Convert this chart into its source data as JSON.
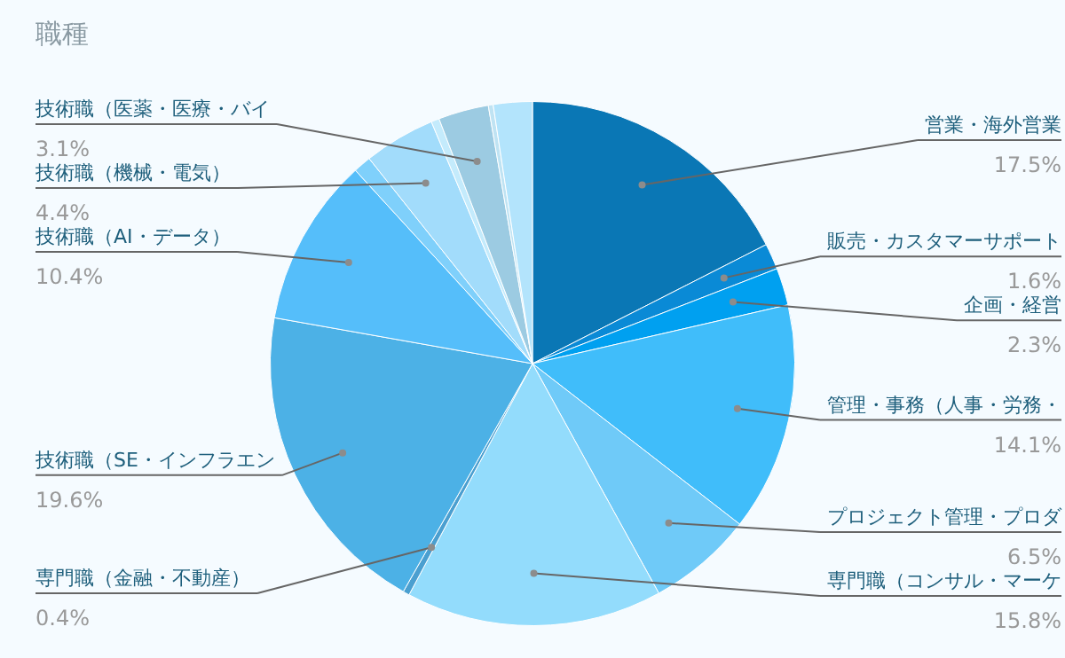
{
  "chart_data": {
    "type": "pie",
    "title": "職種",
    "categories": [
      "営業・海外営業",
      "販売・カスタマーサポート",
      "企画・経営",
      "管理・事務（人事・労務・",
      "プロジェクト管理・プロダ",
      "専門職（コンサル・マーケ",
      "専門職（金融・不動産）",
      "技術職（SE・インフラエン",
      "技術職（AI・データ）",
      null,
      "技術職（機械・電気）",
      null,
      "技術職（医薬・医療・バイ",
      null,
      null
    ],
    "values": [
      17.5,
      1.6,
      2.3,
      14.1,
      6.5,
      15.8,
      0.4,
      19.6,
      10.4,
      1.1,
      4.4,
      0.5,
      3.1,
      0.3,
      2.4
    ],
    "value_labels": [
      "17.5%",
      "1.6%",
      "2.3%",
      "14.1%",
      "6.5%",
      "15.8%",
      "0.4%",
      "19.6%",
      "10.4%",
      null,
      "4.4%",
      null,
      "3.1%",
      null,
      null
    ],
    "colors": [
      "#0a77b5",
      "#0a8ad6",
      "#00a0f0",
      "#40bdfa",
      "#6fcaf8",
      "#93dcfc",
      "#4a9fd0",
      "#4cb1e6",
      "#55befa",
      "#7fd0fb",
      "#a2dcfb",
      "#c4ebfc",
      "#9ccbe2",
      "#bfe3f3",
      "#b3e4fc"
    ]
  }
}
